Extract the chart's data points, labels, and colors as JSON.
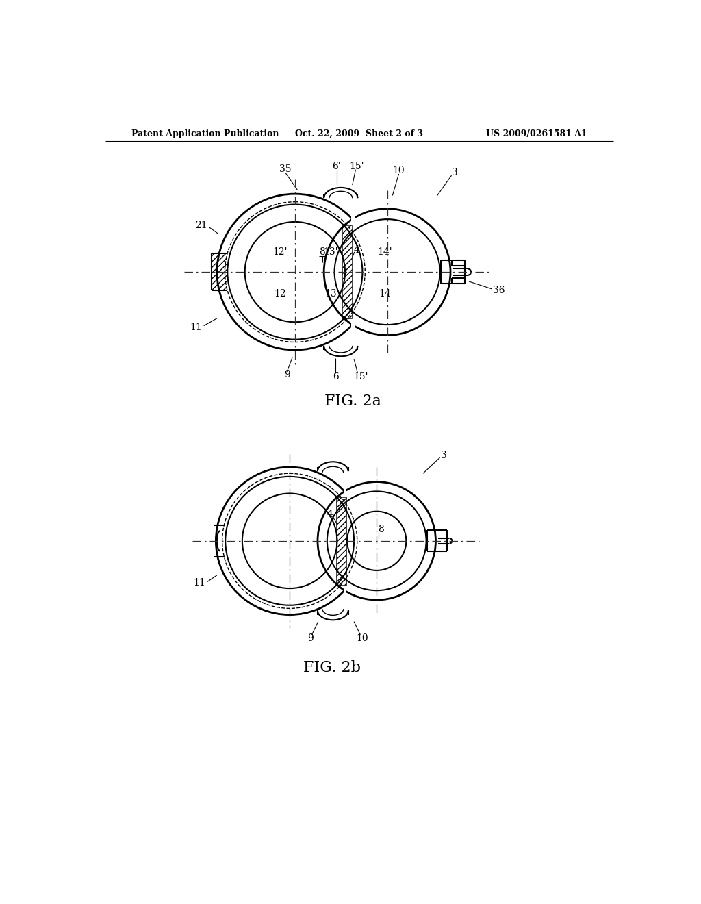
{
  "background_color": "#ffffff",
  "header_left": "Patent Application Publication",
  "header_center": "Oct. 22, 2009  Sheet 2 of 3",
  "header_right": "US 2009/0261581 A1",
  "fig2a_label": "FIG. 2a",
  "fig2b_label": "FIG. 2b",
  "line_color": "#000000",
  "font_size_header": 9,
  "font_size_fig": 16,
  "font_size_number": 10
}
